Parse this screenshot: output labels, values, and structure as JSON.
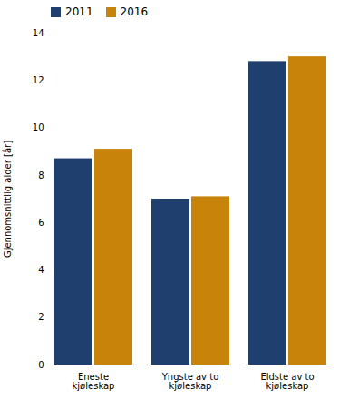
{
  "chart_data": {
    "type": "bar",
    "categories": [
      "Eneste\nkjøleskap",
      "Yngste av to\nkjøleskap",
      "Eldste av to\nkjøleskap"
    ],
    "series": [
      {
        "name": "2011",
        "color": "#1f3f6e",
        "values": [
          8.7,
          7.0,
          12.8
        ]
      },
      {
        "name": "2016",
        "color": "#c8840a",
        "values": [
          9.1,
          7.1,
          13.0
        ]
      }
    ],
    "ylabel": "Gjennomsnittlig alder [år]",
    "ylim": [
      0,
      14
    ],
    "yticks": [
      0,
      2,
      4,
      6,
      8,
      10,
      12,
      14
    ],
    "legend": "upper left",
    "grid": false
  }
}
